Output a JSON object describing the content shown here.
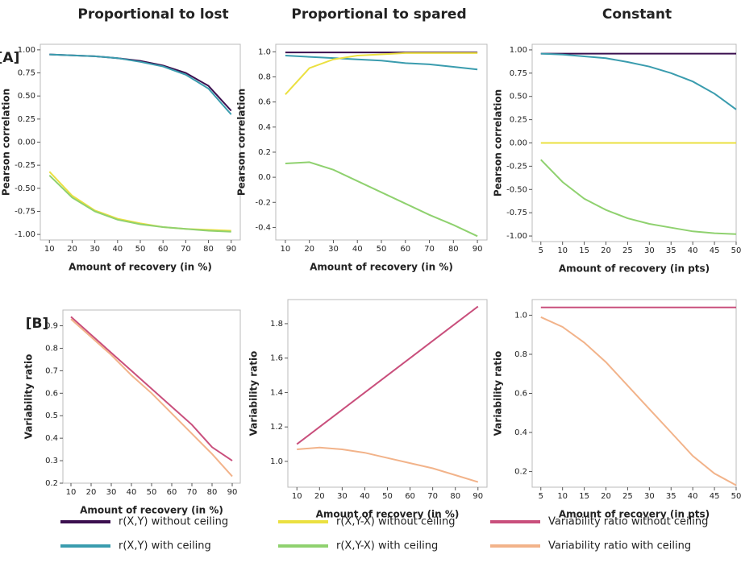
{
  "chart_data": [
    {
      "type": "line",
      "title": "Proportional to lost",
      "panel_label": "[A]",
      "xlabel": "Amount of recovery (in %)",
      "ylabel": "Pearson correlation",
      "x": [
        10,
        20,
        30,
        40,
        50,
        60,
        70,
        80,
        90
      ],
      "xlim": [
        6,
        94
      ],
      "xticks": [
        10,
        20,
        30,
        40,
        50,
        60,
        70,
        80,
        90
      ],
      "ylim": [
        -1.06,
        1.06
      ],
      "yticks": [
        {
          "value": -1,
          "label": "-1.00"
        },
        -0.75,
        {
          "value": -0.5,
          "label": "-0.50"
        },
        -0.25,
        {
          "value": 0,
          "label": "0.00"
        },
        0.25,
        {
          "value": 0.5,
          "label": "0.50"
        },
        0.75,
        {
          "value": 1,
          "label": "1.00"
        }
      ],
      "series": [
        {
          "name": "r(X,Y) without ceiling",
          "color": "#3b0f4f",
          "values": [
            0.95,
            0.94,
            0.93,
            0.91,
            0.88,
            0.83,
            0.75,
            0.61,
            0.34
          ]
        },
        {
          "name": "r(X,Y) with ceiling",
          "color": "#3a9cae",
          "values": [
            0.95,
            0.94,
            0.93,
            0.91,
            0.87,
            0.82,
            0.73,
            0.58,
            0.3
          ]
        },
        {
          "name": "r(X,Y-X) without ceiling",
          "color": "#ebe040",
          "values": [
            -0.32,
            -0.58,
            -0.74,
            -0.83,
            -0.88,
            -0.92,
            -0.94,
            -0.95,
            -0.96
          ]
        },
        {
          "name": "r(X,Y-X) with ceiling",
          "color": "#8fd16f",
          "values": [
            -0.36,
            -0.6,
            -0.75,
            -0.84,
            -0.89,
            -0.92,
            -0.94,
            -0.96,
            -0.97
          ]
        }
      ]
    },
    {
      "type": "line",
      "title": "Proportional to spared",
      "xlabel": "Amount of recovery (in %)",
      "ylabel": "Pearson correlation",
      "x": [
        10,
        20,
        30,
        40,
        50,
        60,
        70,
        80,
        90
      ],
      "xlim": [
        6,
        94
      ],
      "xticks": [
        10,
        20,
        30,
        40,
        50,
        60,
        70,
        80,
        90
      ],
      "ylim": [
        -0.5,
        1.06
      ],
      "yticks": [
        -0.4,
        -0.2,
        {
          "value": 0,
          "label": "0.0"
        },
        0.2,
        0.4,
        0.6,
        0.8,
        {
          "value": 1,
          "label": "1.0"
        }
      ],
      "series": [
        {
          "color": "#3b0f4f",
          "values": [
            0.995,
            0.995,
            0.995,
            0.995,
            0.995,
            0.995,
            0.995,
            0.995,
            0.995
          ]
        },
        {
          "color": "#3a9cae",
          "values": [
            0.97,
            0.96,
            0.95,
            0.94,
            0.93,
            0.91,
            0.9,
            0.88,
            0.86
          ]
        },
        {
          "color": "#ebe040",
          "values": [
            0.66,
            0.87,
            0.94,
            0.97,
            0.98,
            0.99,
            0.99,
            0.99,
            0.99
          ]
        },
        {
          "color": "#8fd16f",
          "values": [
            0.11,
            0.12,
            0.06,
            -0.03,
            -0.12,
            -0.21,
            -0.3,
            -0.38,
            -0.47
          ]
        }
      ]
    },
    {
      "type": "line",
      "title": "Constant",
      "xlabel": "Amount of recovery (in pts)",
      "ylabel": "Pearson correlation",
      "x": [
        5,
        10,
        15,
        20,
        25,
        30,
        35,
        40,
        45,
        50
      ],
      "xlim": [
        3,
        50
      ],
      "xticks": [
        5,
        10,
        15,
        20,
        25,
        30,
        35,
        40,
        45,
        50
      ],
      "ylim": [
        -1.06,
        1.06
      ],
      "yticks": [
        {
          "value": -1,
          "label": "-1.00"
        },
        -0.75,
        {
          "value": -0.5,
          "label": "-0.50"
        },
        -0.25,
        {
          "value": 0,
          "label": "0.00"
        },
        0.25,
        {
          "value": 0.5,
          "label": "0.50"
        },
        0.75,
        {
          "value": 1,
          "label": "1.00"
        }
      ],
      "series": [
        {
          "color": "#3b0f4f",
          "values": [
            0.96,
            0.96,
            0.96,
            0.96,
            0.96,
            0.96,
            0.96,
            0.96,
            0.96,
            0.96
          ]
        },
        {
          "color": "#3a9cae",
          "values": [
            0.96,
            0.95,
            0.93,
            0.91,
            0.87,
            0.82,
            0.75,
            0.66,
            0.53,
            0.36
          ]
        },
        {
          "color": "#ebe040",
          "values": [
            0,
            0,
            0,
            0,
            0,
            0,
            0,
            0,
            0,
            0
          ]
        },
        {
          "color": "#8fd16f",
          "values": [
            -0.18,
            -0.42,
            -0.6,
            -0.72,
            -0.81,
            -0.87,
            -0.91,
            -0.95,
            -0.97,
            -0.98
          ]
        }
      ]
    },
    {
      "type": "line",
      "panel_label": "[B]",
      "xlabel": "Amount of recovery (in %)",
      "ylabel": "Variability ratio",
      "x": [
        10,
        20,
        30,
        40,
        50,
        60,
        70,
        80,
        90
      ],
      "xlim": [
        6,
        94
      ],
      "xticks": [
        10,
        20,
        30,
        40,
        50,
        60,
        70,
        80,
        90
      ],
      "ylim": [
        0.2,
        0.97
      ],
      "yticks": [
        0.2,
        0.3,
        0.4,
        0.5,
        0.6,
        0.7,
        0.8,
        0.9
      ],
      "series": [
        {
          "name": "Variability ratio without ceiling",
          "color": "#c94f7c",
          "values": [
            0.94,
            0.86,
            0.78,
            0.7,
            0.62,
            0.54,
            0.46,
            0.36,
            0.3
          ]
        },
        {
          "name": "Variability ratio with ceiling",
          "color": "#f2b38a",
          "values": [
            0.93,
            0.85,
            0.77,
            0.68,
            0.6,
            0.51,
            0.42,
            0.33,
            0.23
          ]
        }
      ]
    },
    {
      "type": "line",
      "xlabel": "Amount of recovery (in %)",
      "ylabel": "Variability ratio",
      "x": [
        10,
        20,
        30,
        40,
        50,
        60,
        70,
        80,
        90
      ],
      "xlim": [
        6,
        94
      ],
      "xticks": [
        10,
        20,
        30,
        40,
        50,
        60,
        70,
        80,
        90
      ],
      "ylim": [
        0.85,
        1.94
      ],
      "yticks": [
        {
          "value": 1,
          "label": "1.0"
        },
        1.2,
        1.4,
        1.6,
        1.8
      ],
      "series": [
        {
          "color": "#c94f7c",
          "values": [
            1.1,
            1.2,
            1.3,
            1.4,
            1.5,
            1.6,
            1.7,
            1.8,
            1.9
          ]
        },
        {
          "color": "#f2b38a",
          "values": [
            1.07,
            1.08,
            1.07,
            1.05,
            1.02,
            0.99,
            0.96,
            0.92,
            0.88
          ]
        }
      ]
    },
    {
      "type": "line",
      "xlabel": "Amount of recovery (in pts)",
      "ylabel": "Variability ratio",
      "x": [
        5,
        10,
        15,
        20,
        25,
        30,
        35,
        40,
        45,
        50
      ],
      "xlim": [
        3,
        50
      ],
      "xticks": [
        5,
        10,
        15,
        20,
        25,
        30,
        35,
        40,
        45,
        50
      ],
      "ylim": [
        0.12,
        1.08
      ],
      "yticks": [
        0.2,
        0.4,
        0.6,
        0.8,
        {
          "value": 1,
          "label": "1.0"
        }
      ],
      "series": [
        {
          "color": "#c94f7c",
          "values": [
            1.04,
            1.04,
            1.04,
            1.04,
            1.04,
            1.04,
            1.04,
            1.04,
            1.04,
            1.04
          ]
        },
        {
          "color": "#f2b38a",
          "values": [
            0.99,
            0.94,
            0.86,
            0.76,
            0.64,
            0.52,
            0.4,
            0.28,
            0.19,
            0.13
          ]
        }
      ]
    }
  ]
}
